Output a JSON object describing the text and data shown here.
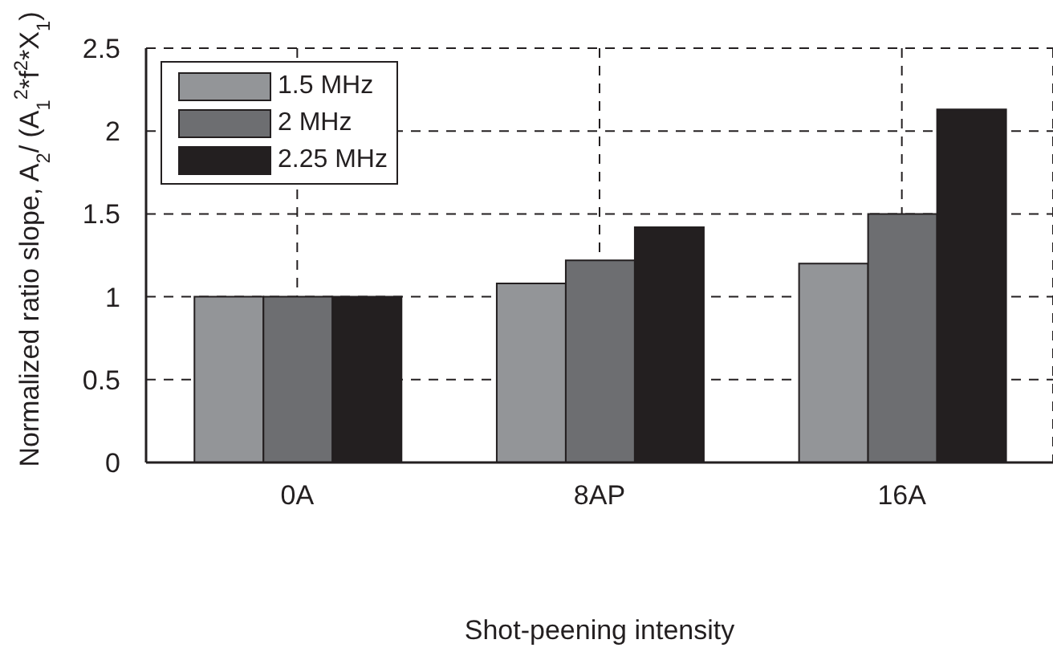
{
  "chart_data": {
    "type": "bar",
    "xlabel": "Shot-peening intensity",
    "ylabel": "Normalized ratio slope, A$_{2}$/ (A$_{1}$$^{2}$*f$^{2}$*X$_{1}$)",
    "categories": [
      "0A",
      "8AP",
      "16A"
    ],
    "series": [
      {
        "name": "1.5 MHz",
        "color": "#939598",
        "values": [
          1,
          1.08,
          1.2
        ]
      },
      {
        "name": "2 MHz",
        "color": "#6d6e71",
        "values": [
          1,
          1.22,
          1.5
        ]
      },
      {
        "name": "2.25 MHz",
        "color": "#231f20",
        "values": [
          1,
          1.42,
          2.13
        ]
      }
    ],
    "ylim": [
      0,
      2.5
    ],
    "yticks": [
      0,
      0.5,
      1,
      1.5,
      2,
      2.5
    ],
    "grid": true,
    "legend": "top left"
  }
}
